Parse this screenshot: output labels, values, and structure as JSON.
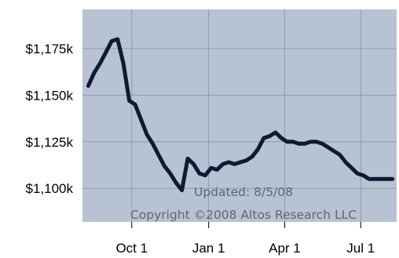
{
  "chart_data": {
    "type": "line",
    "title": "",
    "xlabel": "",
    "ylabel": "",
    "x_tick_labels": [
      "Oct 1",
      "Jan 1",
      "Apr 1",
      "Jul 1"
    ],
    "y_tick_labels": [
      "$1,175k",
      "$1,150k",
      "$1,125k",
      "$1,100k"
    ],
    "y_ticks": [
      1175,
      1150,
      1125,
      1100
    ],
    "ylim": [
      1082,
      1196
    ],
    "xlim": [
      "2007-08-03",
      "2008-08-13"
    ],
    "grid": true,
    "legend": "none",
    "annotations": [
      "Updated: 8/5/08",
      "Copyright ©2008 Altos Research LLC"
    ],
    "colors": {
      "plot_background": "#b7c3d3",
      "line": "#0e1a33",
      "grid": "#8e9bb0",
      "annotation_text": "#5c6678"
    },
    "series": [
      {
        "x": [
          "2007-08-10",
          "2007-08-17",
          "2007-08-24",
          "2007-08-31",
          "2007-09-07",
          "2007-09-14",
          "2007-09-21",
          "2007-09-28",
          "2007-10-05",
          "2007-10-12",
          "2007-10-19",
          "2007-10-26",
          "2007-11-02",
          "2007-11-09",
          "2007-11-16",
          "2007-11-23",
          "2007-11-30",
          "2007-12-07",
          "2007-12-14",
          "2007-12-21",
          "2007-12-28",
          "2008-01-04",
          "2008-01-11",
          "2008-01-18",
          "2008-01-25",
          "2008-02-01",
          "2008-02-08",
          "2008-02-15",
          "2008-02-22",
          "2008-02-29",
          "2008-03-07",
          "2008-03-14",
          "2008-03-21",
          "2008-03-28",
          "2008-04-04",
          "2008-04-11",
          "2008-04-18",
          "2008-04-25",
          "2008-05-02",
          "2008-05-09",
          "2008-05-16",
          "2008-05-23",
          "2008-05-30",
          "2008-06-06",
          "2008-06-13",
          "2008-06-20",
          "2008-06-27",
          "2008-07-04",
          "2008-07-11",
          "2008-07-18",
          "2008-07-25",
          "2008-08-01",
          "2008-08-08"
        ],
        "values": [
          1155,
          1162,
          1167,
          1173,
          1179,
          1180,
          1167,
          1147,
          1145,
          1137,
          1129,
          1124,
          1118,
          1112,
          1108,
          1103,
          1099,
          1116,
          1113,
          1108,
          1107,
          1111,
          1110,
          1113,
          1114,
          1113,
          1114,
          1115,
          1117,
          1121,
          1127,
          1128,
          1130,
          1127,
          1125,
          1125,
          1124,
          1124,
          1125,
          1125,
          1124,
          1122,
          1120,
          1118,
          1114,
          1111,
          1108,
          1107,
          1105,
          1105,
          1105,
          1105,
          1105
        ]
      }
    ]
  }
}
